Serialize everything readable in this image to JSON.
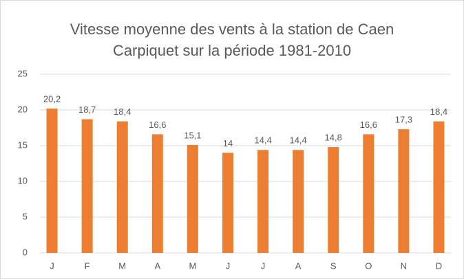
{
  "chart_data": {
    "type": "bar",
    "title": [
      "Vitesse moyenne des vents à la station de Caen",
      "Carpiquet sur la période 1981-2010"
    ],
    "categories": [
      "J",
      "F",
      "M",
      "A",
      "M",
      "J",
      "J",
      "A",
      "S",
      "O",
      "N",
      "D"
    ],
    "values": [
      20.2,
      18.7,
      18.4,
      16.6,
      15.1,
      14,
      14.4,
      14.4,
      14.8,
      16.6,
      17.3,
      18.4
    ],
    "value_labels": [
      "20,2",
      "18,7",
      "18,4",
      "16,6",
      "15,1",
      "14",
      "14,4",
      "14,4",
      "14,8",
      "16,6",
      "17,3",
      "18,4"
    ],
    "color": "#ed7d31",
    "ylim": [
      0,
      25
    ],
    "yticks": [
      0,
      5,
      10,
      15,
      20,
      25
    ],
    "grid": true
  }
}
